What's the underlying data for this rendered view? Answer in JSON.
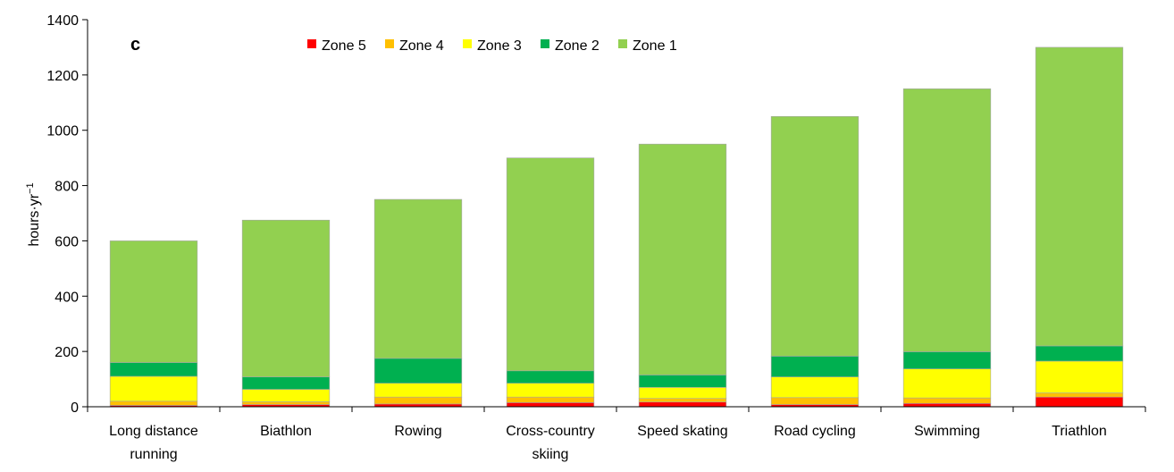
{
  "chart_data": {
    "type": "bar",
    "stacked": true,
    "panel_label": "c",
    "ylabel": "hours·yr",
    "ylabel_superscript": "−1",
    "ylim": [
      0,
      1400
    ],
    "yticks": [
      0,
      200,
      400,
      600,
      800,
      1000,
      1200,
      1400
    ],
    "grid": false,
    "legend_position": "top-center",
    "categories": [
      [
        "Long distance",
        "running"
      ],
      [
        "Biathlon"
      ],
      [
        "Rowing"
      ],
      [
        "Cross-country",
        "skiing"
      ],
      [
        "Speed skating"
      ],
      [
        "Road cycling"
      ],
      [
        "Swimming"
      ],
      [
        "Triathlon"
      ]
    ],
    "series": [
      {
        "name": "Zone 5",
        "color": "#ff0000",
        "values": [
          5,
          8,
          10,
          15,
          17,
          8,
          12,
          35
        ]
      },
      {
        "name": "Zone 4",
        "color": "#ffc000",
        "values": [
          15,
          10,
          25,
          20,
          13,
          25,
          20,
          15
        ]
      },
      {
        "name": "Zone 3",
        "color": "#ffff00",
        "values": [
          90,
          45,
          50,
          50,
          40,
          75,
          105,
          115
        ]
      },
      {
        "name": "Zone 2",
        "color": "#00b050",
        "values": [
          50,
          45,
          90,
          45,
          45,
          75,
          62,
          55
        ]
      },
      {
        "name": "Zone 1",
        "color": "#92d050",
        "values": [
          440,
          567,
          575,
          770,
          835,
          867,
          951,
          1080
        ]
      }
    ]
  }
}
